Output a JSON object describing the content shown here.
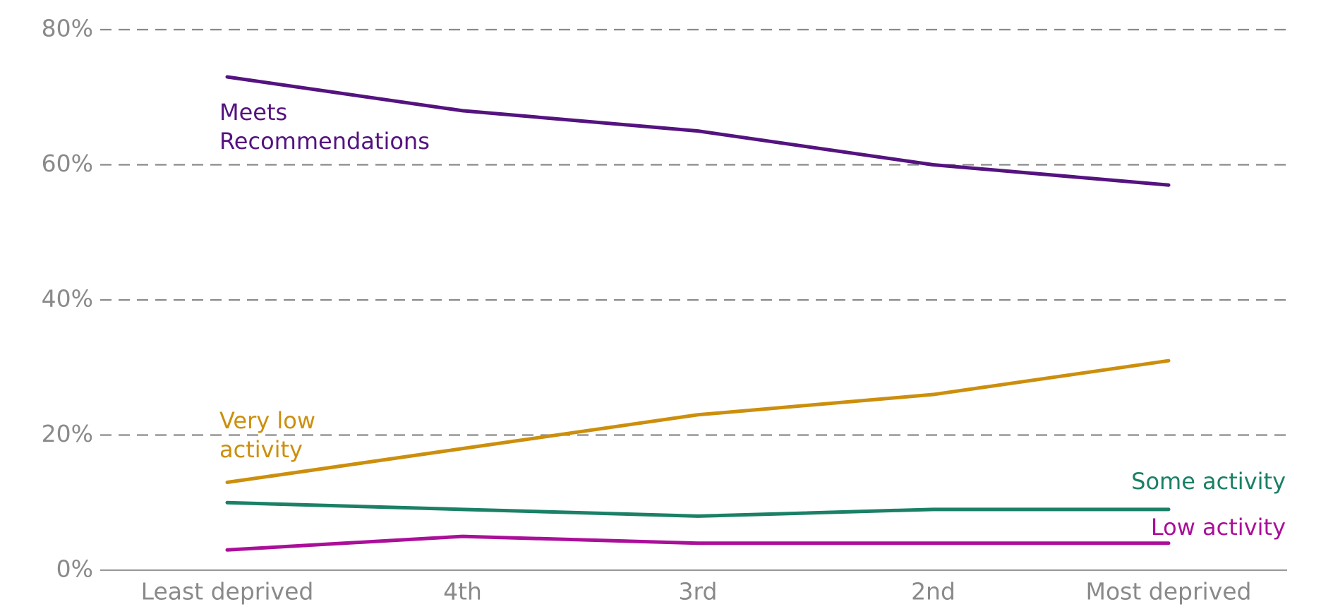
{
  "chart_data": {
    "type": "line",
    "categories": [
      "Least deprived",
      "4th",
      "3rd",
      "2nd",
      "Most deprived"
    ],
    "series": [
      {
        "name": "Meets Recommendations",
        "color": "#54137f",
        "values": [
          73,
          68,
          65,
          60,
          57
        ]
      },
      {
        "name": "Very low activity",
        "color": "#cc8f0d",
        "values": [
          13,
          18,
          23,
          26,
          31
        ]
      },
      {
        "name": "Some activity",
        "color": "#1a8066",
        "values": [
          10,
          9,
          8,
          9,
          9
        ]
      },
      {
        "name": "Low activity",
        "color": "#aa0f99",
        "values": [
          3,
          5,
          4,
          4,
          4
        ]
      }
    ],
    "ylim": [
      0,
      80
    ],
    "yticks": [
      {
        "value": 0,
        "label": "0%"
      },
      {
        "value": 20,
        "label": "20%"
      },
      {
        "value": 40,
        "label": "40%"
      },
      {
        "value": 60,
        "label": "60%"
      },
      {
        "value": 80,
        "label": "80%"
      }
    ],
    "grid": true
  }
}
